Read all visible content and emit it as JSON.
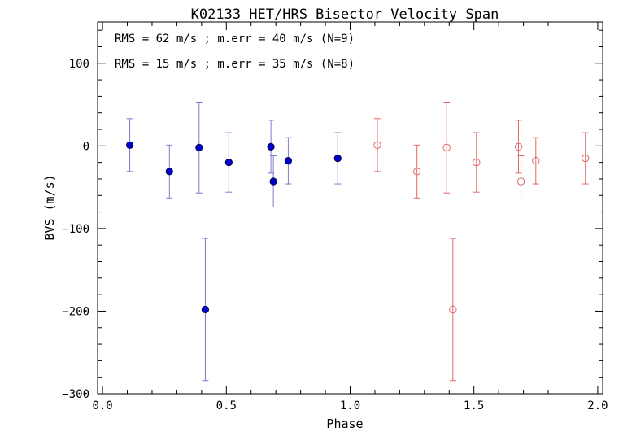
{
  "chart_data": {
    "type": "scatter",
    "title": "K02133 HET/HRS Bisector Velocity Span",
    "xlabel": "Phase",
    "ylabel": "BVS (m/s)",
    "xlim": [
      -0.02,
      2.02
    ],
    "ylim": [
      -300,
      150
    ],
    "xticks": [
      0.0,
      0.5,
      1.0,
      1.5,
      2.0
    ],
    "xtick_labels": [
      "0.0",
      "0.5",
      "1.0",
      "1.5",
      "2.0"
    ],
    "yticks": [
      -300,
      -200,
      -100,
      0,
      100
    ],
    "ytick_labels": [
      "−300",
      "−200",
      "−100",
      "0",
      "100"
    ],
    "grid": false,
    "annotations": [
      "RMS = 62 m/s ; m.err = 40 m/s (N=9)",
      "RMS = 15 m/s ; m.err = 35 m/s (N=8)"
    ],
    "series": [
      {
        "color": "#0000cc",
        "errcolor": "#7a7ad0",
        "marker": "filled-circle",
        "points": [
          {
            "x": 0.11,
            "y": 1,
            "err": 32
          },
          {
            "x": 0.27,
            "y": -31,
            "err": 32
          },
          {
            "x": 0.39,
            "y": -2,
            "err": 55
          },
          {
            "x": 0.415,
            "y": -198,
            "err": 86
          },
          {
            "x": 0.51,
            "y": -20,
            "err": 36
          },
          {
            "x": 0.68,
            "y": -1,
            "err": 32
          },
          {
            "x": 0.69,
            "y": -43,
            "err": 31
          },
          {
            "x": 0.75,
            "y": -18,
            "err": 28
          },
          {
            "x": 0.95,
            "y": -15,
            "err": 31
          }
        ]
      },
      {
        "color": "#e06868",
        "errcolor": "#e06868",
        "marker": "open-circle",
        "points": [
          {
            "x": 1.11,
            "y": 1,
            "err": 32
          },
          {
            "x": 1.27,
            "y": -31,
            "err": 32
          },
          {
            "x": 1.39,
            "y": -2,
            "err": 55
          },
          {
            "x": 1.415,
            "y": -198,
            "err": 86
          },
          {
            "x": 1.51,
            "y": -20,
            "err": 36
          },
          {
            "x": 1.68,
            "y": -1,
            "err": 32
          },
          {
            "x": 1.69,
            "y": -43,
            "err": 31
          },
          {
            "x": 1.75,
            "y": -18,
            "err": 28
          },
          {
            "x": 1.95,
            "y": -15,
            "err": 31
          }
        ]
      }
    ]
  }
}
